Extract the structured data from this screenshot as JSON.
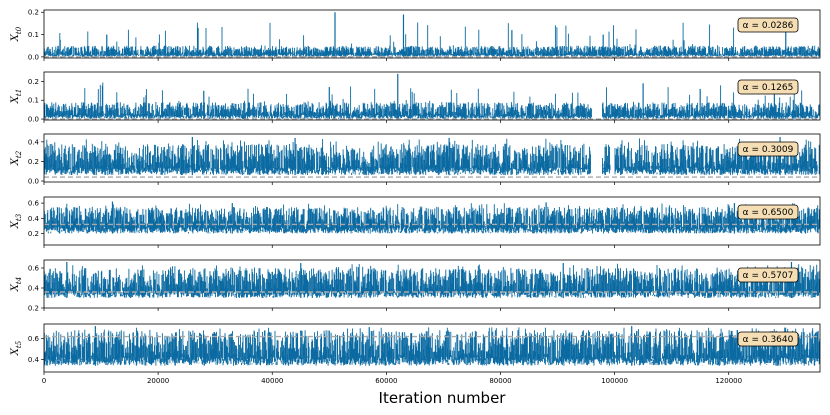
{
  "chart_data": {
    "type": "line",
    "title": "",
    "xlabel": "Iteration number",
    "xlim": [
      0,
      136000
    ],
    "xticks": [
      0,
      20000,
      40000,
      60000,
      80000,
      100000,
      120000
    ],
    "xtick_labels": [
      "0",
      "20000",
      "40000",
      "60000",
      "80000",
      "100000",
      "120000"
    ],
    "trace_color": "#0a6aa1",
    "reference_line_color": "#a9a9a9",
    "annotation_fill": "#f5deb3",
    "panels": [
      {
        "ylabel": "X",
        "ylabel_subscript": "t0",
        "ylim": [
          -0.005,
          0.21
        ],
        "yticks": [
          0.0,
          0.1,
          0.2
        ],
        "ytick_labels": [
          "0.0",
          "0.1",
          "0.2"
        ],
        "reference_value": 0.0,
        "baseline": 0.0,
        "typical_high": 0.05,
        "spike_max": 0.2,
        "spikes": [
          [
            51000,
            0.2
          ],
          [
            63000,
            0.19
          ],
          [
            27000,
            0.13
          ],
          [
            82000,
            0.12
          ],
          [
            130000,
            0.12
          ],
          [
            11000,
            0.1
          ],
          [
            98000,
            0.1
          ]
        ],
        "annotation": "α = 0.0286"
      },
      {
        "ylabel": "X",
        "ylabel_subscript": "t1",
        "ylim": [
          -0.005,
          0.25
        ],
        "yticks": [
          0.0,
          0.1,
          0.2
        ],
        "ytick_labels": [
          "0.0",
          "0.1",
          "0.2"
        ],
        "reference_value": 0.0,
        "baseline": 0.0,
        "typical_high": 0.09,
        "spike_max": 0.24,
        "spikes": [
          [
            62000,
            0.24
          ],
          [
            50000,
            0.17
          ],
          [
            105000,
            0.19
          ],
          [
            128000,
            0.2
          ],
          [
            28000,
            0.15
          ],
          [
            115000,
            0.16
          ]
        ],
        "gaps": [
          [
            96000,
            97800
          ]
        ],
        "annotation": "α = 0.1265"
      },
      {
        "ylabel": "X",
        "ylabel_subscript": "t2",
        "ylim": [
          -0.01,
          0.48
        ],
        "yticks": [
          0.0,
          0.2,
          0.4
        ],
        "ytick_labels": [
          "0.0",
          "0.2",
          "0.4"
        ],
        "reference_value": 0.04,
        "baseline": 0.06,
        "typical_high": 0.38,
        "spike_max": 0.46,
        "spikes": [
          [
            26000,
            0.45
          ],
          [
            44000,
            0.44
          ],
          [
            71000,
            0.44
          ],
          [
            129000,
            0.45
          ]
        ],
        "gaps": [
          [
            95800,
            97800
          ],
          [
            99200,
            100000
          ]
        ],
        "annotation": "α = 0.3009"
      },
      {
        "ylabel": "X",
        "ylabel_subscript": "t3",
        "ylim": [
          0.05,
          0.68
        ],
        "yticks": [
          0.2,
          0.4,
          0.6
        ],
        "ytick_labels": [
          "0.2",
          "0.4",
          "0.6"
        ],
        "reference_value": 0.32,
        "baseline": 0.2,
        "typical_high": 0.55,
        "spike_max": 0.62,
        "spikes": [
          [
            12000,
            0.62
          ],
          [
            33000,
            0.6
          ],
          [
            88000,
            0.61
          ],
          [
            121000,
            0.6
          ]
        ],
        "annotation": "α = 0.6500"
      },
      {
        "ylabel": "X",
        "ylabel_subscript": "t4",
        "ylim": [
          0.2,
          0.68
        ],
        "yticks": [
          0.2,
          0.4,
          0.6
        ],
        "ytick_labels": [
          "0.2",
          "0.4",
          "0.6"
        ],
        "reference_value": 0.36,
        "baseline": 0.3,
        "typical_high": 0.6,
        "spike_max": 0.66,
        "spikes": [
          [
            4000,
            0.66
          ],
          [
            45000,
            0.65
          ],
          [
            91000,
            0.65
          ],
          [
            131000,
            0.66
          ]
        ],
        "annotation": "α = 0.5707"
      },
      {
        "ylabel": "X",
        "ylabel_subscript": "t5",
        "ylim": [
          0.28,
          0.74
        ],
        "yticks": [
          0.4,
          0.6
        ],
        "ytick_labels": [
          "0.4",
          "0.6"
        ],
        "reference_value": 0.62,
        "baseline": 0.34,
        "typical_high": 0.68,
        "spike_max": 0.72,
        "spikes": [
          [
            9000,
            0.72
          ],
          [
            57000,
            0.71
          ],
          [
            103000,
            0.72
          ]
        ],
        "annotation": "α = 0.3640"
      }
    ]
  }
}
